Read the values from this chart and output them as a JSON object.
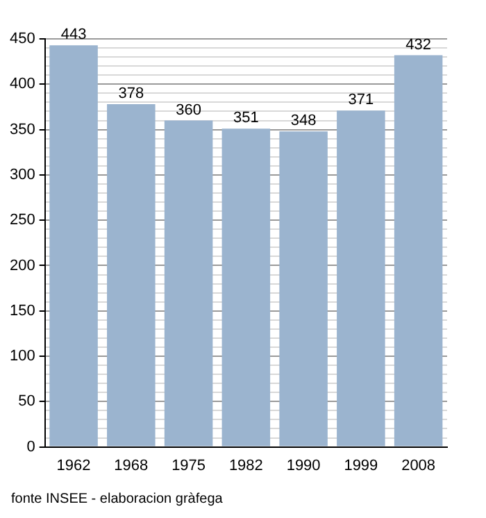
{
  "chart_data": {
    "type": "bar",
    "categories": [
      "1962",
      "1968",
      "1975",
      "1982",
      "1990",
      "1999",
      "2008"
    ],
    "values": [
      443,
      378,
      360,
      351,
      348,
      371,
      432
    ],
    "color": "#9bb4cf",
    "data_labels": true,
    "ylim": [
      0,
      450
    ],
    "yticks": [
      0,
      {
        "value": 10,
        "label": null
      },
      {
        "value": 20,
        "label": null
      },
      {
        "value": 30,
        "label": null
      },
      {
        "value": 40,
        "label": null
      },
      50,
      {
        "value": 60,
        "label": null
      },
      {
        "value": 70,
        "label": null
      },
      {
        "value": 80,
        "label": null
      },
      {
        "value": 90,
        "label": null
      },
      100,
      {
        "value": 110,
        "label": null
      },
      {
        "value": 120,
        "label": null
      },
      {
        "value": 130,
        "label": null
      },
      {
        "value": 140,
        "label": null
      },
      150,
      {
        "value": 160,
        "label": null
      },
      {
        "value": 170,
        "label": null
      },
      {
        "value": 180,
        "label": null
      },
      {
        "value": 190,
        "label": null
      },
      200,
      {
        "value": 210,
        "label": null
      },
      {
        "value": 220,
        "label": null
      },
      {
        "value": 230,
        "label": null
      },
      {
        "value": 240,
        "label": null
      },
      250,
      {
        "value": 260,
        "label": null
      },
      {
        "value": 270,
        "label": null
      },
      {
        "value": 280,
        "label": null
      },
      {
        "value": 290,
        "label": null
      },
      300,
      {
        "value": 310,
        "label": null
      },
      {
        "value": 320,
        "label": null
      },
      {
        "value": 330,
        "label": null
      },
      {
        "value": 340,
        "label": null
      },
      350,
      {
        "value": 360,
        "label": null
      },
      {
        "value": 370,
        "label": null
      },
      {
        "value": 380,
        "label": null
      },
      {
        "value": 390,
        "label": null
      },
      400,
      {
        "value": 410,
        "label": null
      },
      {
        "value": 420,
        "label": null
      },
      {
        "value": 430,
        "label": null
      },
      {
        "value": 440,
        "label": null
      },
      450
    ],
    "grid": "y",
    "legend": false,
    "annotations": [
      "fonte INSEE - elaboracion gràfega"
    ]
  }
}
